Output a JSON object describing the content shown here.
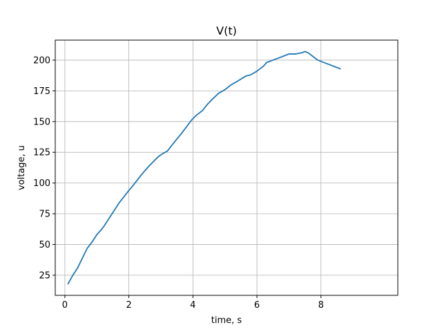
{
  "chart_data": {
    "type": "line",
    "title": "V(t)",
    "xlabel": "time, s",
    "ylabel": "voltage, u",
    "xlim": [
      -0.3,
      10.4
    ],
    "ylim": [
      8.6,
      216.3
    ],
    "xticks": [
      0,
      2,
      4,
      6,
      8
    ],
    "yticks": [
      25,
      50,
      75,
      100,
      125,
      150,
      175,
      200
    ],
    "grid": true,
    "legend": "none",
    "series": [
      {
        "color": "#1f77b4",
        "x": [
          0.1,
          0.25,
          0.4,
          0.55,
          0.7,
          0.85,
          1.0,
          1.2,
          1.35,
          1.5,
          1.7,
          1.85,
          2.0,
          2.1,
          2.25,
          2.4,
          2.6,
          2.75,
          2.9,
          3.0,
          3.2,
          3.35,
          3.6,
          3.75,
          3.95,
          4.1,
          4.3,
          4.45,
          4.6,
          4.8,
          5.0,
          5.2,
          5.4,
          5.65,
          5.8,
          6.0,
          6.2,
          6.3,
          6.5,
          6.7,
          6.9,
          7.0,
          7.2,
          7.4,
          7.5,
          7.6,
          7.75,
          7.9,
          8.2,
          8.6
        ],
        "y": [
          18,
          25,
          31,
          39,
          47,
          52,
          58,
          64,
          70,
          76,
          84,
          89,
          94,
          97,
          102,
          107,
          113,
          117,
          121,
          123,
          126,
          131,
          139,
          144,
          151,
          155,
          159,
          164,
          168,
          173,
          176,
          180,
          183,
          187,
          188,
          191,
          195,
          198,
          200,
          202,
          204,
          205,
          205,
          206,
          207,
          206,
          203,
          200,
          197,
          193
        ]
      }
    ]
  }
}
